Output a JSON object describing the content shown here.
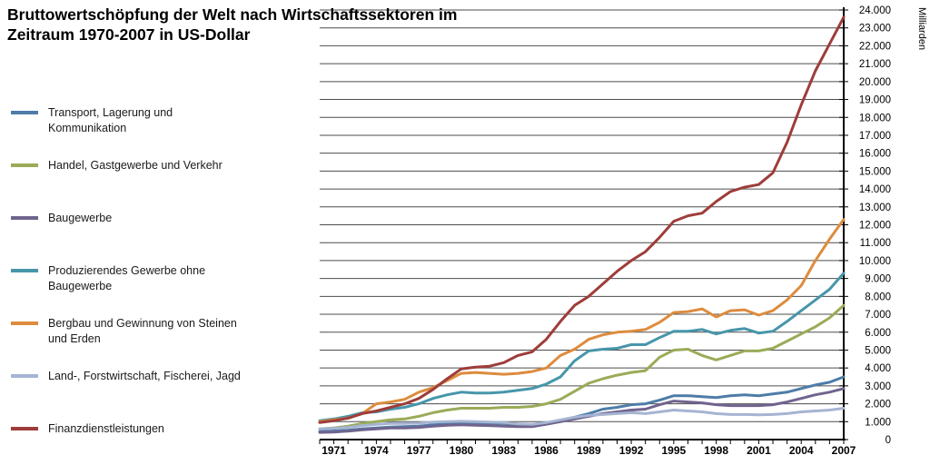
{
  "header": {
    "title_line1": "Bruttowertschöpfung der Welt nach Wirtschaftssektoren im",
    "title_line2": "Zeitraum 1970-2007 in US-Dollar"
  },
  "legend": {
    "items": [
      {
        "id": "transport",
        "label": "Transport, Lagerung und\nKommunikation"
      },
      {
        "id": "handel",
        "label": "Handel, Gastgewerbe und Verkehr"
      },
      {
        "id": "bau",
        "label": "Baugewerbe"
      },
      {
        "id": "produzierendes",
        "label": "Produzierendes Gewerbe ohne\nBaugewerbe"
      },
      {
        "id": "bergbau",
        "label": "Bergbau und Gewinnung von Steinen\nund Erden"
      },
      {
        "id": "land",
        "label": "Land-, Forstwirtschaft, Fischerei, Jagd"
      },
      {
        "id": "finanz",
        "label": "Finanzdienstleistungen"
      }
    ]
  },
  "chart_data": {
    "type": "line",
    "title": "Bruttowertschöpfung der Welt nach Wirtschaftssektoren im Zeitraum 1970-2007 in US-Dollar",
    "xlabel": "",
    "ylabel": "Milliarden",
    "grid": true,
    "legend_position": "left",
    "x": [
      1970,
      1971,
      1972,
      1973,
      1974,
      1975,
      1976,
      1977,
      1978,
      1979,
      1980,
      1981,
      1982,
      1983,
      1984,
      1985,
      1986,
      1987,
      1988,
      1989,
      1990,
      1991,
      1992,
      1993,
      1994,
      1995,
      1996,
      1997,
      1998,
      1999,
      2000,
      2001,
      2002,
      2003,
      2004,
      2005,
      2006,
      2007
    ],
    "x_tick_labels": [
      "1971",
      "1974",
      "1977",
      "1980",
      "1983",
      "1986",
      "1989",
      "1992",
      "1995",
      "1998",
      "2001",
      "2004",
      "2007"
    ],
    "y_axis": {
      "min": 0,
      "max": 24000,
      "step": 1000,
      "tick_format": "german-thousands",
      "unit": "Milliarden"
    },
    "draw_order": [
      "handel",
      "transport",
      "bau",
      "land",
      "produzierendes",
      "bergbau",
      "finanz"
    ],
    "series": [
      {
        "id": "transport",
        "name": "Transport, Lagerung und Kommunikation",
        "color": "#4e7ca8",
        "values": [
          450,
          480,
          520,
          600,
          650,
          700,
          720,
          750,
          820,
          880,
          920,
          900,
          900,
          900,
          850,
          800,
          900,
          1050,
          1250,
          1450,
          1700,
          1800,
          1950,
          2000,
          2200,
          2450,
          2450,
          2400,
          2350,
          2450,
          2500,
          2450,
          2550,
          2650,
          2850,
          3050,
          3200,
          3500
        ]
      },
      {
        "id": "handel",
        "name": "Handel, Gastgewerbe und Verkehr",
        "color": "#9aab58",
        "values": [
          600,
          650,
          750,
          900,
          1000,
          1100,
          1150,
          1300,
          1500,
          1650,
          1750,
          1750,
          1750,
          1800,
          1800,
          1850,
          2000,
          2250,
          2700,
          3150,
          3400,
          3600,
          3750,
          3850,
          4600,
          5000,
          5050,
          4700,
          4450,
          4700,
          4950,
          4950,
          5100,
          5500,
          5900,
          6300,
          6800,
          7500
        ]
      },
      {
        "id": "bau",
        "name": "Baugewerbe",
        "color": "#70648e",
        "values": [
          400,
          420,
          470,
          550,
          600,
          650,
          650,
          680,
          750,
          800,
          820,
          800,
          780,
          750,
          720,
          720,
          850,
          1000,
          1150,
          1300,
          1450,
          1550,
          1650,
          1700,
          1950,
          2150,
          2100,
          2050,
          1950,
          1900,
          1900,
          1900,
          1950,
          2100,
          2300,
          2500,
          2650,
          2850
        ]
      },
      {
        "id": "produzierendes",
        "name": "Produzierendes Gewerbe ohne Baugewerbe",
        "color": "#4796aa",
        "values": [
          1050,
          1150,
          1300,
          1500,
          1550,
          1700,
          1800,
          2000,
          2300,
          2500,
          2650,
          2600,
          2600,
          2650,
          2750,
          2850,
          3100,
          3500,
          4400,
          4950,
          5050,
          5100,
          5300,
          5300,
          5700,
          6050,
          6050,
          6150,
          5900,
          6100,
          6200,
          5950,
          6050,
          6600,
          7200,
          7800,
          8400,
          9300
        ]
      },
      {
        "id": "bergbau",
        "name": "Bergbau und Gewinnung von Steinen und Erden",
        "color": "#dd8c3e",
        "values": [
          1000,
          1100,
          1200,
          1450,
          2000,
          2100,
          2250,
          2650,
          2900,
          3300,
          3700,
          3750,
          3700,
          3650,
          3700,
          3800,
          4000,
          4700,
          5050,
          5600,
          5850,
          6000,
          6050,
          6150,
          6550,
          7100,
          7150,
          7300,
          6850,
          7200,
          7250,
          6950,
          7200,
          7800,
          8600,
          10000,
          11200,
          12300
        ]
      },
      {
        "id": "land",
        "name": "Land-, Forstwirtschaft, Fischerei, Jagd",
        "color": "#a6b4d2",
        "values": [
          600,
          630,
          680,
          780,
          850,
          900,
          900,
          920,
          980,
          1000,
          1020,
          1000,
          980,
          950,
          880,
          850,
          950,
          1100,
          1250,
          1350,
          1400,
          1450,
          1500,
          1450,
          1550,
          1650,
          1600,
          1550,
          1450,
          1400,
          1400,
          1380,
          1400,
          1450,
          1550,
          1600,
          1650,
          1750
        ]
      },
      {
        "id": "finanz",
        "name": "Finanzdienstleistungen",
        "color": "#9e3d3a",
        "values": [
          950,
          1050,
          1200,
          1450,
          1600,
          1800,
          2000,
          2300,
          2800,
          3400,
          3950,
          4050,
          4100,
          4300,
          4700,
          4900,
          5600,
          6600,
          7500,
          8000,
          8700,
          9400,
          10000,
          10500,
          11300,
          12200,
          12500,
          12650,
          13300,
          13850,
          14100,
          14250,
          14900,
          16600,
          18700,
          20600,
          22100,
          23600
        ]
      }
    ]
  }
}
